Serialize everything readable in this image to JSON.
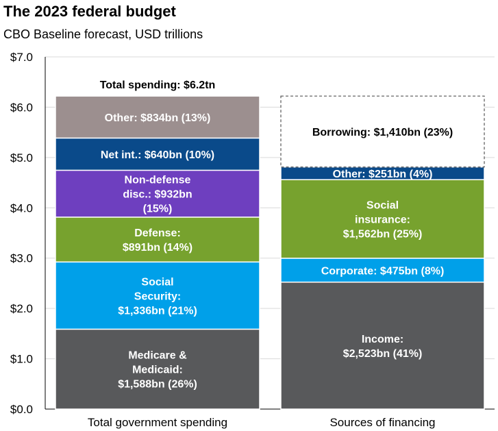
{
  "chart_data": {
    "type": "bar",
    "stacked": true,
    "title": "The 2023 federal budget",
    "subtitle": "CBO Baseline forecast, USD trillions",
    "ylim": [
      0,
      7
    ],
    "yticks": [
      0,
      1,
      2,
      3,
      4,
      5,
      6,
      7
    ],
    "ytick_labels": [
      "$0.0",
      "$1.0",
      "$2.0",
      "$3.0",
      "$4.0",
      "$5.0",
      "$6.0",
      "$7.0"
    ],
    "grid": true,
    "categories": [
      "Total government spending",
      "Sources of financing"
    ],
    "bars": [
      {
        "category": "Total government spending",
        "total_label": "Total spending: $6.2tn",
        "segments": [
          {
            "label": [
              "Medicare &",
              "Medicaid:",
              "$1,588bn (26%)"
            ],
            "value": 1.588,
            "color": "#58595b",
            "text_color": "#ffffff"
          },
          {
            "label": [
              "Social",
              "Security:",
              "$1,336bn (21%)"
            ],
            "value": 1.336,
            "color": "#00a0e9",
            "text_color": "#ffffff"
          },
          {
            "label": [
              "Defense:",
              "$891bn (14%)"
            ],
            "value": 0.891,
            "color": "#77a22e",
            "text_color": "#ffffff"
          },
          {
            "label": [
              "Non-defense",
              "disc.: $932bn",
              "(15%)"
            ],
            "value": 0.932,
            "color": "#6e3fbf",
            "text_color": "#ffffff"
          },
          {
            "label": [
              "Net int.: $640bn (10%)"
            ],
            "value": 0.64,
            "color": "#0a4a8a",
            "text_color": "#ffffff"
          },
          {
            "label": [
              "Other: $834bn (13%)"
            ],
            "value": 0.834,
            "color": "#9c8f8f",
            "text_color": "#ffffff"
          }
        ]
      },
      {
        "category": "Sources of financing",
        "segments": [
          {
            "label": [
              "Income:",
              "$2,523bn (41%)"
            ],
            "value": 2.523,
            "color": "#58595b",
            "text_color": "#ffffff"
          },
          {
            "label": [
              "Corporate: $475bn (8%)"
            ],
            "value": 0.475,
            "color": "#00a0e9",
            "text_color": "#ffffff"
          },
          {
            "label": [
              "Social",
              "insurance:",
              "$1,562bn (25%)"
            ],
            "value": 1.562,
            "color": "#77a22e",
            "text_color": "#ffffff"
          },
          {
            "label": [
              "Other: $251bn (4%)"
            ],
            "value": 0.251,
            "color": "#0a4a8a",
            "text_color": "#ffffff"
          },
          {
            "label": [
              "Borrowing: $1,410bn (23%)"
            ],
            "value": 1.41,
            "color": "#ffffff",
            "text_color": "#000000",
            "dashed": true
          }
        ]
      }
    ]
  }
}
